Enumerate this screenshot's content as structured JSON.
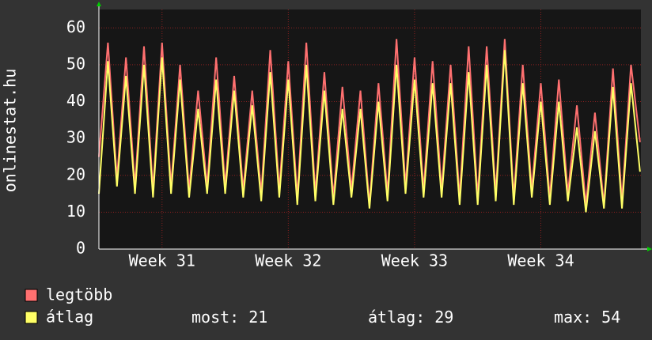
{
  "chart_data": {
    "type": "line",
    "y_label": "onlinestat.hu",
    "x": [
      0,
      0.5,
      1,
      1.5,
      2,
      2.5,
      3,
      3.5,
      4,
      4.5,
      5,
      5.5,
      6,
      6.5,
      7,
      7.5,
      8,
      8.5,
      9,
      9.5,
      10,
      10.5,
      11,
      11.5,
      12,
      12.5,
      13,
      13.5,
      14,
      14.5,
      15,
      15.5,
      16,
      16.5,
      17,
      17.5,
      18,
      18.5,
      19,
      19.5,
      20,
      20.5,
      21,
      21.5,
      22,
      22.5,
      23,
      23.5,
      24,
      24.5,
      25,
      25.5,
      26,
      26.5,
      27,
      27.5,
      28,
      28.5,
      29,
      29.5,
      30
    ],
    "xlim": [
      0,
      30.05
    ],
    "xticks": [
      {
        "value": 3.5,
        "label": "Week 31"
      },
      {
        "value": 10.5,
        "label": "Week 32"
      },
      {
        "value": 17.5,
        "label": "Week 33"
      },
      {
        "value": 24.5,
        "label": "Week 34"
      }
    ],
    "ylim": [
      0,
      65
    ],
    "yticks": [
      0,
      10,
      20,
      30,
      40,
      50,
      60
    ],
    "grid": true,
    "series": [
      {
        "name": "legtöbb",
        "color": "#ff7070",
        "values": [
          25,
          56,
          19,
          52,
          17,
          55,
          16,
          56,
          17,
          50,
          16,
          43,
          17,
          52,
          17,
          47,
          16,
          43,
          15,
          54,
          16,
          51,
          14,
          56,
          15,
          48,
          14,
          44,
          16,
          43,
          12,
          45,
          15,
          57,
          17,
          52,
          16,
          51,
          16,
          50,
          14,
          55,
          14,
          55,
          15,
          57,
          14,
          50,
          16,
          45,
          14,
          46,
          15,
          39,
          12,
          37,
          12,
          49,
          13,
          50,
          29
        ]
      },
      {
        "name": "átlag",
        "color": "#ffff66",
        "values": [
          15,
          51,
          17,
          47,
          15,
          50,
          14,
          52,
          15,
          46,
          14,
          38,
          15,
          46,
          15,
          43,
          14,
          39,
          13,
          48,
          14,
          46,
          12,
          50,
          13,
          43,
          12,
          38,
          14,
          38,
          11,
          40,
          13,
          50,
          15,
          46,
          14,
          45,
          14,
          45,
          12,
          48,
          12,
          50,
          13,
          54,
          12,
          45,
          14,
          40,
          12,
          40,
          13,
          33,
          10,
          32,
          11,
          44,
          11,
          45,
          21
        ]
      }
    ],
    "stats": [
      {
        "label": "most:",
        "value": 21
      },
      {
        "label": "átlag:",
        "value": 29
      },
      {
        "label": "max:",
        "value": 54
      }
    ]
  }
}
